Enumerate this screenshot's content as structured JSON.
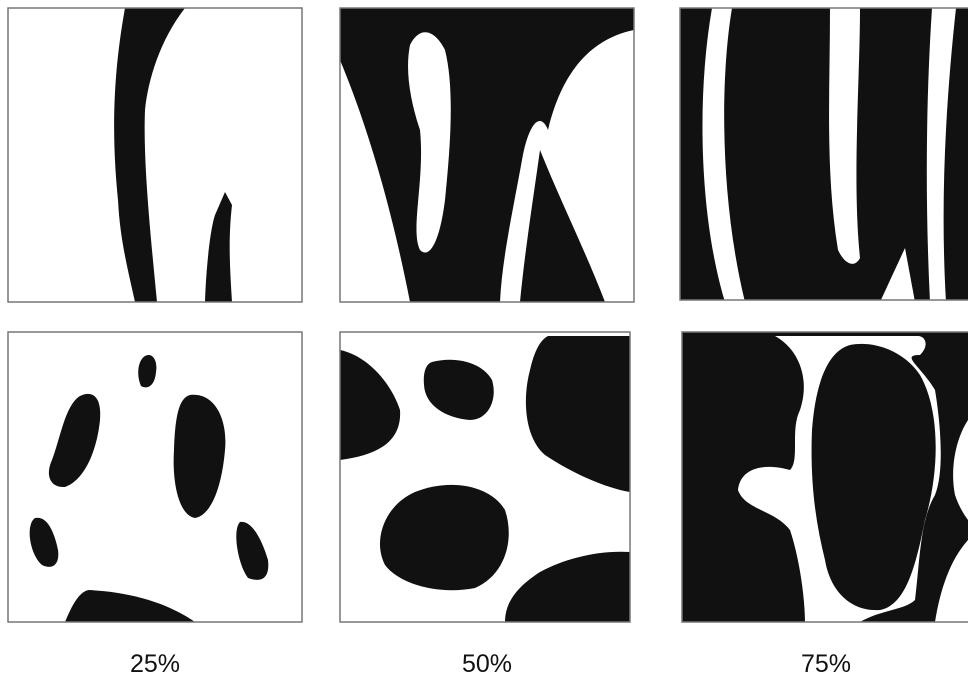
{
  "labels": [
    "25%",
    "50%",
    "75%"
  ]
}
